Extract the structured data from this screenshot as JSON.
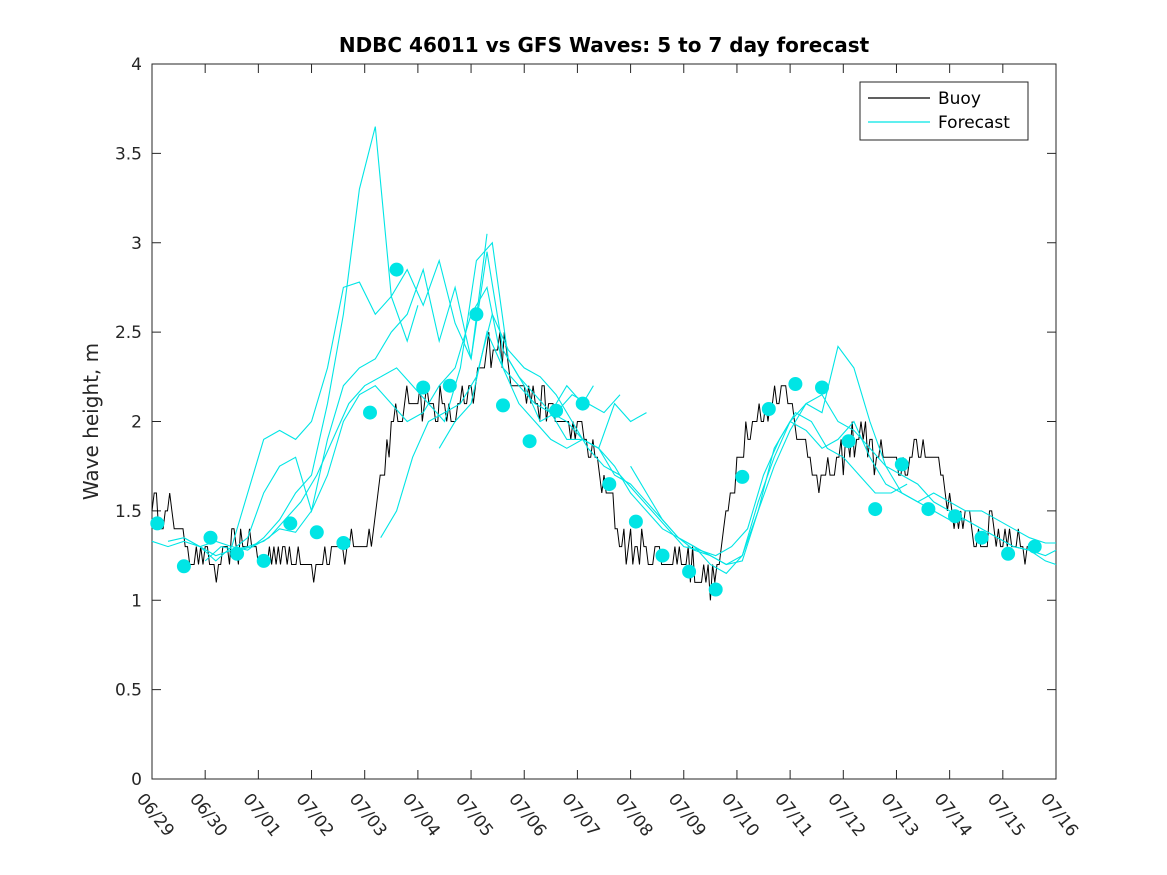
{
  "chart_data": {
    "type": "line",
    "title": "NDBC 46011 vs GFS Waves: 5 to 7 day forecast",
    "xlabel": "",
    "ylabel": "Wave height, m",
    "xlim": [
      0,
      17
    ],
    "ylim": [
      0,
      4
    ],
    "x_ticks": [
      "06/29",
      "06/30",
      "07/01",
      "07/02",
      "07/03",
      "07/04",
      "07/05",
      "07/06",
      "07/07",
      "07/08",
      "07/09",
      "07/10",
      "07/11",
      "07/12",
      "07/13",
      "07/14",
      "07/15",
      "07/16"
    ],
    "y_ticks": [
      "0",
      "0.5",
      "1",
      "1.5",
      "2",
      "2.5",
      "3",
      "3.5",
      "4"
    ],
    "legend": {
      "position": "top-right",
      "entries": [
        "Buoy",
        "Forecast"
      ]
    },
    "colors": {
      "buoy": "#000000",
      "forecast": "#00e5e5",
      "marker": "#00e5e5",
      "axis": "#262626"
    },
    "buoy_anchors": [
      [
        0.0,
        1.55
      ],
      [
        0.15,
        1.45
      ],
      [
        0.3,
        1.5
      ],
      [
        0.5,
        1.4
      ],
      [
        0.7,
        1.3
      ],
      [
        1.0,
        1.25
      ],
      [
        1.2,
        1.15
      ],
      [
        1.4,
        1.25
      ],
      [
        1.6,
        1.3
      ],
      [
        1.8,
        1.35
      ],
      [
        2.0,
        1.2
      ],
      [
        2.2,
        1.25
      ],
      [
        2.5,
        1.25
      ],
      [
        2.8,
        1.25
      ],
      [
        3.0,
        1.2
      ],
      [
        3.2,
        1.2
      ],
      [
        3.5,
        1.25
      ],
      [
        3.7,
        1.3
      ],
      [
        3.9,
        1.3
      ],
      [
        4.1,
        1.35
      ],
      [
        4.2,
        1.55
      ],
      [
        4.4,
        1.8
      ],
      [
        4.6,
        2.0
      ],
      [
        4.8,
        2.1
      ],
      [
        5.0,
        2.15
      ],
      [
        5.2,
        2.1
      ],
      [
        5.4,
        2.1
      ],
      [
        5.6,
        2.0
      ],
      [
        5.8,
        2.1
      ],
      [
        6.0,
        2.1
      ],
      [
        6.2,
        2.3
      ],
      [
        6.4,
        2.45
      ],
      [
        6.6,
        2.4
      ],
      [
        6.8,
        2.25
      ],
      [
        7.0,
        2.2
      ],
      [
        7.2,
        2.1
      ],
      [
        7.4,
        2.1
      ],
      [
        7.6,
        2.05
      ],
      [
        7.8,
        2.0
      ],
      [
        8.0,
        1.95
      ],
      [
        8.2,
        1.85
      ],
      [
        8.4,
        1.75
      ],
      [
        8.6,
        1.55
      ],
      [
        8.8,
        1.35
      ],
      [
        9.0,
        1.3
      ],
      [
        9.2,
        1.3
      ],
      [
        9.4,
        1.25
      ],
      [
        9.6,
        1.25
      ],
      [
        9.8,
        1.2
      ],
      [
        10.0,
        1.25
      ],
      [
        10.2,
        1.2
      ],
      [
        10.4,
        1.15
      ],
      [
        10.55,
        1.1
      ],
      [
        10.7,
        1.25
      ],
      [
        10.85,
        1.55
      ],
      [
        11.0,
        1.8
      ],
      [
        11.2,
        1.95
      ],
      [
        11.4,
        2.0
      ],
      [
        11.6,
        2.1
      ],
      [
        11.8,
        2.15
      ],
      [
        12.0,
        2.15
      ],
      [
        12.2,
        1.9
      ],
      [
        12.4,
        1.75
      ],
      [
        12.6,
        1.7
      ],
      [
        12.8,
        1.7
      ],
      [
        13.0,
        1.8
      ],
      [
        13.2,
        1.9
      ],
      [
        13.4,
        1.95
      ],
      [
        13.6,
        1.8
      ],
      [
        13.8,
        1.8
      ],
      [
        14.0,
        1.75
      ],
      [
        14.2,
        1.75
      ],
      [
        14.4,
        1.8
      ],
      [
        14.6,
        1.85
      ],
      [
        14.8,
        1.75
      ],
      [
        15.0,
        1.55
      ],
      [
        15.2,
        1.45
      ],
      [
        15.4,
        1.4
      ],
      [
        15.6,
        1.35
      ],
      [
        15.8,
        1.4
      ],
      [
        16.0,
        1.35
      ],
      [
        16.2,
        1.35
      ],
      [
        16.4,
        1.3
      ],
      [
        16.5,
        1.3
      ]
    ],
    "buoy_noise": 0.09,
    "forecast_series": [
      {
        "x": [
          0.0,
          0.3,
          0.6,
          0.9,
          1.2,
          1.5,
          1.8,
          2.1,
          2.4,
          2.7,
          3.0,
          3.3,
          3.6,
          3.9,
          4.2,
          4.5,
          4.8,
          5.0
        ],
        "y": [
          1.33,
          1.3,
          1.33,
          1.3,
          1.22,
          1.3,
          1.6,
          1.9,
          1.95,
          1.9,
          2.0,
          2.3,
          2.75,
          2.78,
          2.6,
          2.7,
          2.45,
          2.65
        ]
      },
      {
        "x": [
          0.3,
          0.6,
          0.9,
          1.2,
          1.5,
          1.8,
          2.1,
          2.4,
          2.7,
          3.0,
          3.3,
          3.6,
          3.9,
          4.2,
          4.5,
          4.8,
          5.1,
          5.4,
          5.7,
          6.0,
          6.3
        ],
        "y": [
          1.33,
          1.35,
          1.3,
          1.25,
          1.28,
          1.35,
          1.6,
          1.75,
          1.8,
          1.5,
          1.9,
          2.2,
          2.3,
          2.35,
          2.5,
          2.6,
          2.85,
          2.45,
          2.75,
          2.35,
          3.05
        ]
      },
      {
        "x": [
          0.6,
          0.9,
          1.2,
          1.5,
          1.8,
          2.1,
          2.4,
          2.7,
          3.0,
          3.3,
          3.6,
          3.9,
          4.2,
          4.5,
          4.8,
          5.1,
          5.4,
          5.7,
          6.0,
          6.3,
          6.6,
          6.9,
          7.2,
          7.5,
          7.8,
          8.1,
          8.3
        ],
        "y": [
          1.35,
          1.3,
          1.33,
          1.3,
          1.28,
          1.35,
          1.45,
          1.6,
          1.7,
          2.1,
          2.6,
          3.3,
          3.65,
          2.7,
          2.85,
          2.65,
          2.9,
          2.55,
          2.35,
          2.95,
          2.4,
          2.25,
          2.15,
          2.05,
          2.2,
          2.1,
          2.2
        ]
      },
      {
        "x": [
          1.0,
          1.3,
          1.6,
          1.9,
          2.2,
          2.5,
          2.8,
          3.1,
          3.4,
          3.7,
          4.0,
          4.3,
          4.6,
          4.9,
          5.2,
          5.5,
          5.8,
          6.1,
          6.4,
          6.7,
          7.0,
          7.3,
          7.6,
          7.9,
          8.2,
          8.5,
          8.8
        ],
        "y": [
          1.22,
          1.3,
          1.28,
          1.3,
          1.35,
          1.45,
          1.55,
          1.7,
          1.9,
          2.1,
          2.2,
          2.25,
          2.3,
          2.2,
          2.1,
          2.0,
          2.3,
          2.9,
          3.0,
          2.35,
          2.2,
          2.0,
          2.05,
          2.15,
          2.1,
          2.05,
          2.15
        ]
      },
      {
        "x": [
          1.5,
          1.8,
          2.1,
          2.4,
          2.7,
          3.0,
          3.3,
          3.6,
          3.9,
          4.2,
          4.5,
          4.8,
          5.1,
          5.4,
          5.7,
          6.0,
          6.3,
          6.6,
          6.9,
          7.2,
          7.5,
          7.8,
          8.1,
          8.4,
          8.7,
          9.0,
          9.3
        ],
        "y": [
          1.28,
          1.3,
          1.33,
          1.4,
          1.38,
          1.5,
          1.7,
          2.0,
          2.15,
          2.2,
          2.1,
          2.0,
          2.05,
          2.2,
          2.3,
          2.6,
          2.75,
          2.3,
          2.1,
          2.0,
          1.9,
          1.85,
          1.9,
          1.85,
          2.1,
          2.0,
          2.05
        ]
      },
      {
        "x": [
          4.3,
          4.6,
          4.9,
          5.2,
          5.5,
          5.8,
          6.1,
          6.4,
          6.7,
          7.0,
          7.3,
          7.6,
          7.9,
          8.2,
          8.5,
          8.8,
          9.1,
          9.4,
          9.7,
          10.0,
          10.3,
          10.6,
          10.9,
          11.2,
          11.5,
          11.8,
          12.1,
          12.4,
          12.7,
          13.0,
          13.3,
          13.6,
          13.9,
          14.2
        ],
        "y": [
          1.35,
          1.5,
          1.8,
          2.0,
          2.05,
          2.1,
          2.25,
          2.6,
          2.4,
          2.3,
          2.25,
          2.15,
          2.0,
          1.85,
          1.75,
          1.7,
          1.6,
          1.5,
          1.4,
          1.3,
          1.28,
          1.25,
          1.3,
          1.4,
          1.7,
          1.9,
          2.05,
          2.0,
          1.85,
          1.8,
          1.7,
          1.6,
          1.6,
          1.65
        ]
      },
      {
        "x": [
          5.4,
          5.7,
          6.0,
          6.3,
          6.6,
          6.9,
          7.2,
          7.5,
          7.8,
          8.1,
          8.4,
          8.7,
          9.0,
          9.3,
          9.6,
          9.9,
          10.2,
          10.5,
          10.8,
          11.1,
          11.4,
          11.7,
          12.0,
          12.3,
          12.6,
          12.9,
          13.2,
          13.5,
          13.8,
          14.1,
          14.4,
          14.7,
          15.0,
          15.3,
          15.6,
          15.9,
          16.2,
          16.5,
          16.8,
          17.0
        ],
        "y": [
          1.85,
          2.0,
          2.1,
          2.5,
          2.3,
          2.2,
          2.1,
          2.05,
          1.9,
          1.9,
          1.85,
          1.7,
          1.65,
          1.55,
          1.45,
          1.35,
          1.3,
          1.2,
          1.15,
          1.25,
          1.5,
          1.85,
          2.0,
          1.95,
          1.85,
          1.9,
          2.0,
          1.8,
          1.65,
          1.6,
          1.55,
          1.5,
          1.45,
          1.45,
          1.4,
          1.35,
          1.3,
          1.28,
          1.22,
          1.2
        ]
      },
      {
        "x": [
          7.5,
          7.8,
          8.1,
          8.4,
          8.7,
          9.0,
          9.3,
          9.6,
          9.9,
          10.2,
          10.5,
          10.8,
          11.1,
          11.4,
          11.7,
          12.0,
          12.3,
          12.6,
          12.9,
          13.2,
          13.5,
          13.8,
          14.1,
          14.4,
          14.7,
          15.0,
          15.3,
          15.6,
          15.9,
          16.2,
          16.5,
          16.8,
          17.0
        ],
        "y": [
          2.05,
          2.0,
          1.9,
          1.85,
          1.75,
          1.6,
          1.5,
          1.4,
          1.35,
          1.3,
          1.25,
          1.2,
          1.25,
          1.55,
          1.8,
          2.0,
          2.1,
          2.15,
          2.0,
          1.95,
          1.85,
          1.75,
          1.7,
          1.65,
          1.55,
          1.5,
          1.45,
          1.4,
          1.35,
          1.3,
          1.28,
          1.25,
          1.28
        ]
      },
      {
        "x": [
          9.0,
          9.3,
          9.6,
          9.9,
          10.2,
          10.5,
          10.8,
          11.1,
          11.4,
          11.7,
          12.0,
          12.3,
          12.6,
          12.9,
          13.2,
          13.5,
          13.8,
          14.1,
          14.4,
          14.7,
          15.0,
          15.3,
          15.6,
          15.9,
          16.2,
          16.5,
          16.8,
          17.0
        ],
        "y": [
          1.75,
          1.6,
          1.45,
          1.35,
          1.28,
          1.25,
          1.2,
          1.22,
          1.5,
          1.75,
          1.95,
          2.1,
          2.05,
          2.42,
          2.3,
          2.0,
          1.75,
          1.6,
          1.55,
          1.6,
          1.55,
          1.5,
          1.5,
          1.45,
          1.4,
          1.35,
          1.32,
          1.32
        ]
      }
    ],
    "forecast_markers": [
      [
        0.1,
        1.43
      ],
      [
        0.6,
        1.19
      ],
      [
        1.1,
        1.35
      ],
      [
        1.6,
        1.26
      ],
      [
        2.1,
        1.22
      ],
      [
        2.6,
        1.43
      ],
      [
        3.1,
        1.38
      ],
      [
        3.6,
        1.32
      ],
      [
        4.1,
        2.05
      ],
      [
        4.6,
        2.85
      ],
      [
        5.1,
        2.19
      ],
      [
        5.6,
        2.2
      ],
      [
        6.1,
        2.6
      ],
      [
        6.6,
        2.09
      ],
      [
        7.1,
        1.89
      ],
      [
        7.6,
        2.06
      ],
      [
        8.1,
        2.1
      ],
      [
        8.6,
        1.65
      ],
      [
        9.1,
        1.44
      ],
      [
        9.6,
        1.25
      ],
      [
        10.1,
        1.16
      ],
      [
        10.6,
        1.06
      ],
      [
        11.1,
        1.69
      ],
      [
        11.6,
        2.07
      ],
      [
        12.1,
        2.21
      ],
      [
        12.6,
        2.19
      ],
      [
        13.1,
        1.89
      ],
      [
        13.6,
        1.51
      ],
      [
        14.1,
        1.76
      ],
      [
        14.6,
        1.51
      ],
      [
        15.1,
        1.47
      ],
      [
        15.6,
        1.35
      ],
      [
        16.1,
        1.26
      ],
      [
        16.6,
        1.3
      ]
    ]
  }
}
